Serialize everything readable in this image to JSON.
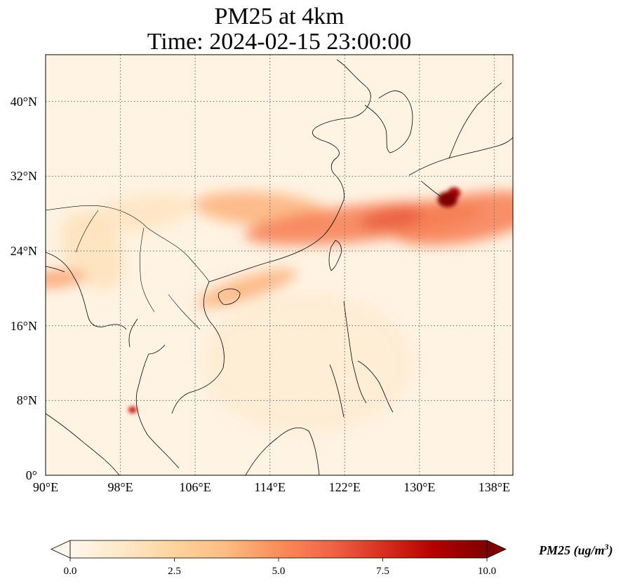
{
  "title": {
    "line1": "PM25 at 4km",
    "line2": "Time: 2024-02-15 23:00:00"
  },
  "map": {
    "projection": "PlateCarree",
    "lon_range": [
      90,
      140
    ],
    "lat_range": [
      0,
      45
    ],
    "gridlines": "dotted",
    "features": [
      "coastlines",
      "country borders"
    ]
  },
  "axes": {
    "x_ticks": [
      {
        "value": 90,
        "label": "90°E"
      },
      {
        "value": 98,
        "label": "98°E"
      },
      {
        "value": 106,
        "label": "106°E"
      },
      {
        "value": 114,
        "label": "114°E"
      },
      {
        "value": 122,
        "label": "122°E"
      },
      {
        "value": 130,
        "label": "130°E"
      },
      {
        "value": 138,
        "label": "138°E"
      }
    ],
    "y_ticks": [
      {
        "value": 0,
        "label": "0°"
      },
      {
        "value": 8,
        "label": "8°N"
      },
      {
        "value": 16,
        "label": "16°N"
      },
      {
        "value": 24,
        "label": "24°N"
      },
      {
        "value": 32,
        "label": "32°N"
      },
      {
        "value": 40,
        "label": "40°N"
      }
    ]
  },
  "colorbar": {
    "colormap": "OrRd",
    "colors": [
      "#fff7ec",
      "#fee8c8",
      "#fdd49e",
      "#fdbb84",
      "#fc8d59",
      "#ef6548",
      "#d7301f",
      "#b30000",
      "#7f0000"
    ],
    "range": [
      0,
      10
    ],
    "extend": "both",
    "ticks": [
      {
        "value": 0,
        "label": "0.0"
      },
      {
        "value": 2.5,
        "label": "2.5"
      },
      {
        "value": 5,
        "label": "5.0"
      },
      {
        "value": 7.5,
        "label": "7.5"
      },
      {
        "value": 10,
        "label": "10.0"
      }
    ],
    "label_main": "PM25 (ug/m",
    "label_sup": "3",
    "label_end": ")"
  },
  "field": {
    "background_value": 0.3,
    "plumes": [
      {
        "name": "main band",
        "lon": 124,
        "lat": 27.0,
        "value": 5.5
      },
      {
        "name": "east band",
        "lon": 135,
        "lat": 27.5,
        "value": 5.5
      },
      {
        "name": "north-west lobe",
        "lon": 113,
        "lat": 28.5,
        "value": 4.0
      },
      {
        "name": "south china lobe",
        "lon": 111.5,
        "lat": 20.0,
        "value": 4.0
      },
      {
        "name": "core south of korea",
        "lon": 127,
        "lat": 27.5,
        "value": 6.5
      },
      {
        "name": "hotspot",
        "lon": 133,
        "lat": 29.5,
        "value": 10.0
      },
      {
        "name": "hotspot secondary",
        "lon": 133.7,
        "lat": 30.2,
        "value": 9.0
      },
      {
        "name": "bay of bengal",
        "lon": 91,
        "lat": 21,
        "value": 4.5
      },
      {
        "name": "malay spot",
        "lon": 99.3,
        "lat": 7,
        "value": 8.0
      },
      {
        "name": "myanmar",
        "lon": 95,
        "lat": 24,
        "value": 1.6
      },
      {
        "name": "yunnan",
        "lon": 100,
        "lat": 28,
        "value": 1.5
      },
      {
        "name": "south china sea",
        "lon": 118,
        "lat": 12,
        "value": 0.9
      }
    ]
  }
}
